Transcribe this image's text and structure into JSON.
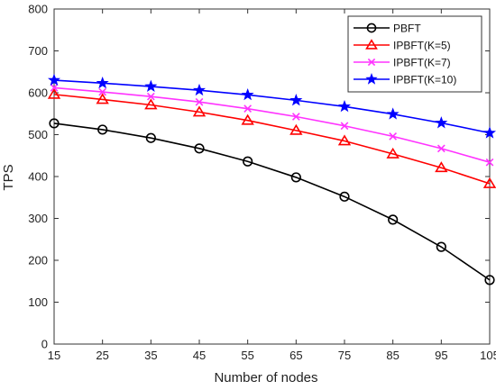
{
  "chart_data": {
    "type": "line",
    "title": "",
    "xlabel": "Number of nodes",
    "ylabel": "TPS",
    "x": [
      15,
      25,
      35,
      45,
      55,
      65,
      75,
      85,
      95,
      105
    ],
    "xlim": [
      15,
      105
    ],
    "ylim": [
      0,
      800
    ],
    "yticks": [
      0,
      100,
      200,
      300,
      400,
      500,
      600,
      700,
      800
    ],
    "grid": false,
    "legend_position": "top-right",
    "series": [
      {
        "name": "PBFT",
        "color": "#000000",
        "marker": "circle",
        "values": [
          527,
          512,
          492,
          467,
          436,
          398,
          352,
          297,
          232,
          153
        ]
      },
      {
        "name": "IPBFT(K=5)",
        "color": "#ff0000",
        "marker": "triangle",
        "values": [
          596,
          584,
          571,
          554,
          534,
          510,
          485,
          454,
          421,
          383
        ]
      },
      {
        "name": "IPBFT(K=7)",
        "color": "#ff33ff",
        "marker": "x",
        "values": [
          612,
          602,
          591,
          578,
          562,
          543,
          521,
          496,
          467,
          434
        ]
      },
      {
        "name": "IPBFT(K=10)",
        "color": "#0000ff",
        "marker": "star",
        "values": [
          630,
          623,
          615,
          606,
          595,
          582,
          567,
          549,
          528,
          504
        ]
      }
    ]
  }
}
